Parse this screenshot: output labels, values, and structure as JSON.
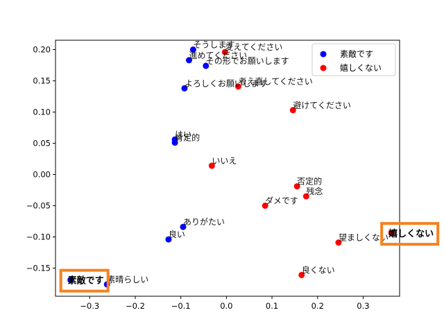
{
  "chart_data": {
    "type": "scatter",
    "xlim": [
      -0.375,
      0.38
    ],
    "ylim": [
      -0.195,
      0.215
    ],
    "xticks": [
      -0.3,
      -0.2,
      -0.1,
      0.0,
      0.1,
      0.2,
      0.3
    ],
    "yticks": [
      -0.15,
      -0.1,
      -0.05,
      0.0,
      0.05,
      0.1,
      0.15,
      0.2
    ],
    "xtick_labels": [
      "−0.3",
      "−0.2",
      "−0.1",
      "0.0",
      "0.1",
      "0.2",
      "0.3"
    ],
    "ytick_labels": [
      "−0.15",
      "−0.10",
      "−0.05",
      "0.00",
      "0.05",
      "0.10",
      "0.15",
      "0.20"
    ],
    "grid": false,
    "legend_position": "top-right",
    "series": [
      {
        "name": "素敵です",
        "color": "#0000ff",
        "points": [
          {
            "x": -0.073,
            "y": 0.2,
            "label": "そうします"
          },
          {
            "x": -0.082,
            "y": 0.183,
            "label": "進めてください"
          },
          {
            "x": -0.045,
            "y": 0.174,
            "label": "その形でお願いします"
          },
          {
            "x": -0.092,
            "y": 0.138,
            "label": "よろしくお願いします"
          },
          {
            "x": -0.113,
            "y": 0.056,
            "label": "はい"
          },
          {
            "x": -0.113,
            "y": 0.051,
            "label": "肯定的"
          },
          {
            "x": -0.095,
            "y": -0.084,
            "label": "ありがたい"
          },
          {
            "x": -0.127,
            "y": -0.104,
            "label": "良い"
          },
          {
            "x": -0.342,
            "y": -0.169,
            "label": "素敵です"
          },
          {
            "x": -0.262,
            "y": -0.176,
            "label": "素晴らしい"
          }
        ]
      },
      {
        "name": "嬉しくない",
        "color": "#ff0000",
        "points": [
          {
            "x": -0.003,
            "y": 0.196,
            "label": "変えてください"
          },
          {
            "x": 0.026,
            "y": 0.141,
            "label": "考え直してください"
          },
          {
            "x": 0.146,
            "y": 0.103,
            "label": "避けてください"
          },
          {
            "x": -0.032,
            "y": 0.014,
            "label": "いいえ"
          },
          {
            "x": 0.155,
            "y": -0.019,
            "label": "否定的"
          },
          {
            "x": 0.175,
            "y": -0.035,
            "label": "残念"
          },
          {
            "x": 0.085,
            "y": -0.05,
            "label": "ダメです"
          },
          {
            "x": 0.246,
            "y": -0.109,
            "label": "望ましくない"
          },
          {
            "x": 0.362,
            "y": -0.094,
            "label": "嬉しくない"
          },
          {
            "x": 0.165,
            "y": -0.161,
            "label": "良くない"
          }
        ]
      }
    ],
    "highlighted": [
      "素敵です",
      "嬉しくない"
    ]
  }
}
